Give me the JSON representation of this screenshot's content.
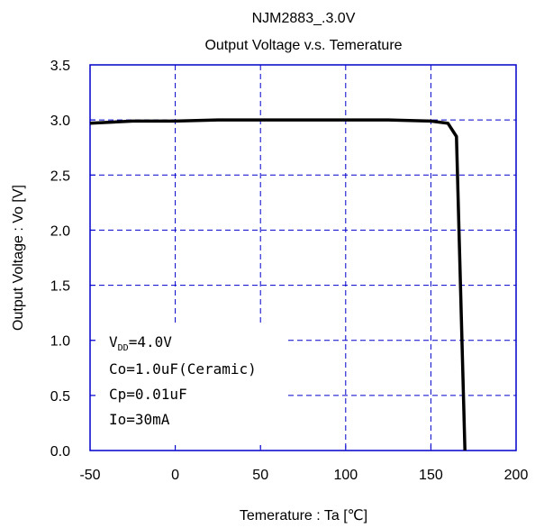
{
  "chart_data": {
    "type": "line",
    "title": "NJM2883_.3.0V",
    "subtitle": "Output Voltage v.s. Temerature",
    "xlabel": "Temerature : Ta [℃]",
    "ylabel": "Output Voltage : Vo [V]",
    "xlim": [
      -50,
      200
    ],
    "ylim": [
      0,
      3.5
    ],
    "x_ticks": [
      -50,
      0,
      50,
      100,
      150,
      200
    ],
    "x_tick_labels": [
      "-50",
      "0",
      "50",
      "100",
      "150",
      "200"
    ],
    "y_ticks": [
      0,
      0.5,
      1,
      1.5,
      2,
      2.5,
      3,
      3.5
    ],
    "y_tick_labels": [
      "0.0",
      "0.5",
      "1.0",
      "1.5",
      "2.0",
      "2.5",
      "3.0",
      "3.5"
    ],
    "grid": true,
    "series": [
      {
        "x": [
          -50,
          -25,
          0,
          25,
          50,
          75,
          100,
          125,
          150,
          160,
          165,
          170
        ],
        "y": [
          2.97,
          2.99,
          2.99,
          3.0,
          3.0,
          3.0,
          3.0,
          3.0,
          2.99,
          2.97,
          2.85,
          0.0
        ]
      }
    ],
    "annotations": {
      "vdd_main": "V",
      "vdd_sub": "DD",
      "vdd_value": "=4.0V",
      "co": "Co=1.0uF(Ceramic)",
      "cp": "Cp=0.01uF",
      "io": "Io=30mA"
    },
    "colors": {
      "frame": "#0000cc",
      "grid": "#0000cc",
      "line": "#000000"
    }
  }
}
